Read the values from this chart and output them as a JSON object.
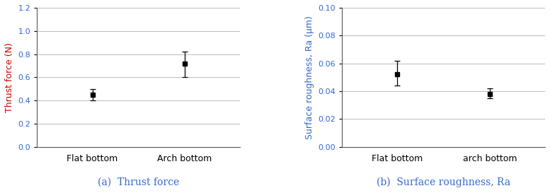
{
  "chart1": {
    "categories": [
      "Flat bottom",
      "Arch bottom"
    ],
    "values": [
      0.45,
      0.72
    ],
    "errors_upper": [
      0.05,
      0.1
    ],
    "errors_lower": [
      0.05,
      0.12
    ],
    "ylabel": "Thrust force (N)",
    "ylim": [
      0.0,
      1.2
    ],
    "yticks": [
      0.0,
      0.2,
      0.4,
      0.6,
      0.8,
      1.0,
      1.2
    ],
    "yticklabels": [
      "0.0",
      "0.2",
      "0.4",
      "0.6",
      "0.8",
      "1.0",
      "1.2"
    ],
    "caption": "(a)  Thrust force",
    "ylabel_color": "#cc0000"
  },
  "chart2": {
    "categories": [
      "Flat bottom",
      "arch bottom"
    ],
    "values": [
      0.052,
      0.038
    ],
    "errors_upper": [
      0.01,
      0.004
    ],
    "errors_lower": [
      0.008,
      0.003
    ],
    "ylabel": "Surface roughness, Ra (μm)",
    "ylim": [
      0.0,
      0.1
    ],
    "yticks": [
      0.0,
      0.02,
      0.04,
      0.06,
      0.08,
      0.1
    ],
    "yticklabels": [
      "0.00",
      "0.02",
      "0.04",
      "0.06",
      "0.08",
      "0.10"
    ],
    "caption": "(b)  Surface roughness, Ra",
    "ylabel_color": "#3366cc"
  },
  "marker": "s",
  "markersize": 5,
  "marker_color": "black",
  "capsize": 3,
  "grid_color": "#bbbbbb",
  "spine_color": "#555555",
  "tick_label_color": "#3366cc",
  "x_tick_label_color": "#000000",
  "caption_fontsize": 10,
  "caption_color": "#3366cc",
  "ylabel_fontsize": 9,
  "tick_fontsize": 8,
  "x_tick_fontsize": 9
}
